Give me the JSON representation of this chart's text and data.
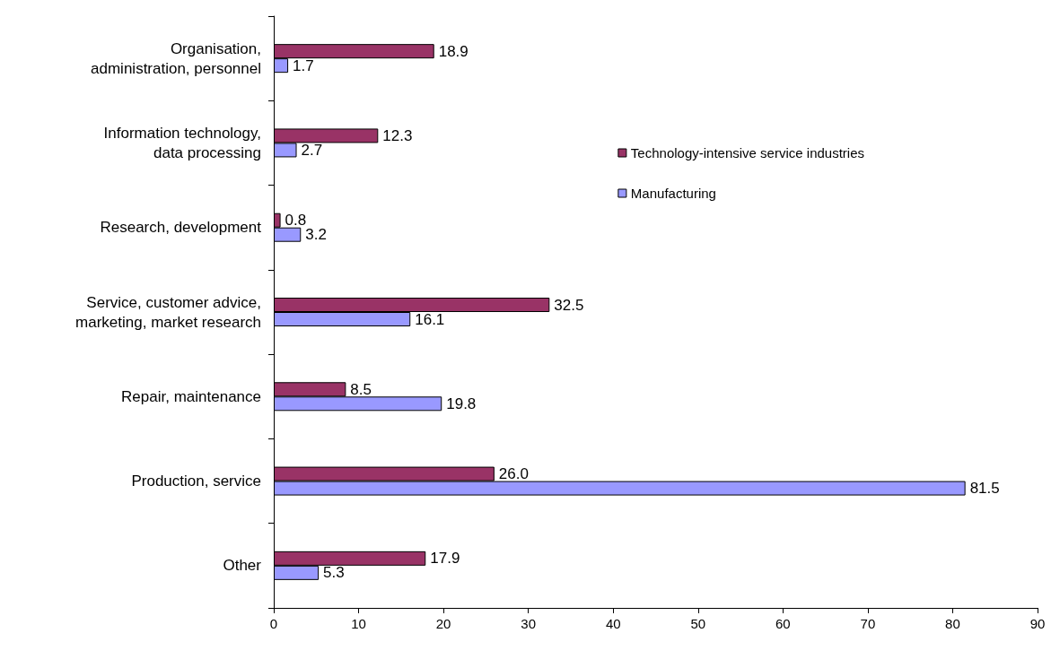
{
  "chart_data": {
    "type": "bar",
    "orientation": "horizontal",
    "categories": [
      "Organisation,\nadministration, personnel",
      "Information technology,\ndata processing",
      "Research, development",
      "Service, customer advice,\nmarketing, market research",
      "Repair, maintenance",
      "Production, service",
      "Other"
    ],
    "series": [
      {
        "name": "Technology-intensive service industries",
        "color": "#993366",
        "values": [
          18.9,
          12.3,
          0.8,
          32.5,
          8.5,
          26.0,
          17.9
        ],
        "value_labels": [
          "18.9",
          "12.3",
          "0.8",
          "32.5",
          "8.5",
          "26.0",
          "17.9"
        ]
      },
      {
        "name": "Manufacturing",
        "color": "#9999ff",
        "values": [
          1.7,
          2.7,
          3.2,
          16.1,
          19.8,
          81.5,
          5.3
        ],
        "value_labels": [
          "1.7",
          "2.7",
          "3.2",
          "16.1",
          "19.8",
          "81.5",
          "5.3"
        ]
      }
    ],
    "xlim": [
      0,
      90
    ],
    "xticks": [
      0,
      10,
      20,
      30,
      40,
      50,
      60,
      70,
      80,
      90
    ],
    "grid": false,
    "legend": "right"
  }
}
